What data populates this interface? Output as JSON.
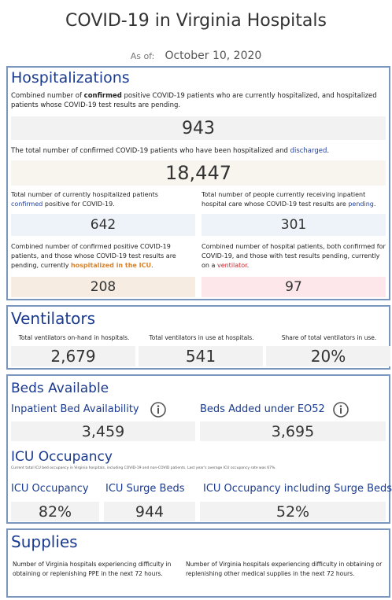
{
  "header": {
    "title": "COVID-19 in Virginia Hospitals",
    "as_of_label": "As of:",
    "date": "October 10, 2020"
  },
  "hospitalizations": {
    "title": "Hospitalizations",
    "current": {
      "text": [
        "Combined number of ",
        "confirmed",
        " positive COVID-19 patients who are currently hospitalized, and hospitalized patients whose COVID-19 test results are pending."
      ],
      "value": "943"
    },
    "total": {
      "text": [
        "The total number of confirmed COVID-19 patients who have been hospitalized and ",
        "discharged",
        "."
      ],
      "value": "18,447"
    },
    "confirmed": {
      "text": [
        "Total number of currently hospitalized patients ",
        "confirmed",
        " positive for COVID-19."
      ],
      "value": "642"
    },
    "pending": {
      "text": [
        "Total number of people currently receiving inpatient hospital care whose COVID-19 test results are ",
        "pending",
        "."
      ],
      "value": "301"
    },
    "icu": {
      "text": [
        "Combined number of confirmed positive COVID-19 patients, and those whose COVID-19 test results are pending, currently ",
        "hospitalized in the ICU",
        "."
      ],
      "value": "208"
    },
    "ventilator": {
      "text": [
        "Combined number of hospital patients, both confirmed for COVID-19, and those with test results pending, currently on a ",
        "ventilator",
        "."
      ],
      "value": "97"
    }
  },
  "ventilators": {
    "title": "Ventilators",
    "items": [
      {
        "label": "Total ventilators on-hand in hospitals.",
        "value": "2,679"
      },
      {
        "label": "Total ventilators in use at hospitals.",
        "value": "541"
      },
      {
        "label": "Share of total ventilators in use.",
        "value": "20%"
      }
    ]
  },
  "beds": {
    "title": "Beds Available",
    "items": [
      {
        "label": "Inpatient Bed Availability",
        "value": "3,459"
      },
      {
        "label": "Beds Added under EO52",
        "value": "3,695"
      }
    ],
    "icu_title": "ICU Occupancy",
    "icu_note": "Current total ICU bed occupancy in Virginia hospitals, including COVID-19 and non-COVID patients. Last year's average ICU occupancy rate was 67%.",
    "icu_items": [
      {
        "label": "ICU Occupancy",
        "value": "82%"
      },
      {
        "label": "ICU Surge Beds",
        "value": "944"
      },
      {
        "label": "ICU Occupancy including Surge Beds",
        "value": "52%"
      }
    ]
  },
  "supplies": {
    "title": "Supplies",
    "items": [
      "Number of Virginia hospitals experiencing difficulty in obtaining or replenishing PPE in the next 72 hours.",
      "Number of Virginia hospitals experiencing difficulty in obtaining or replenishing other medical supplies in the next 72 hours."
    ]
  }
}
